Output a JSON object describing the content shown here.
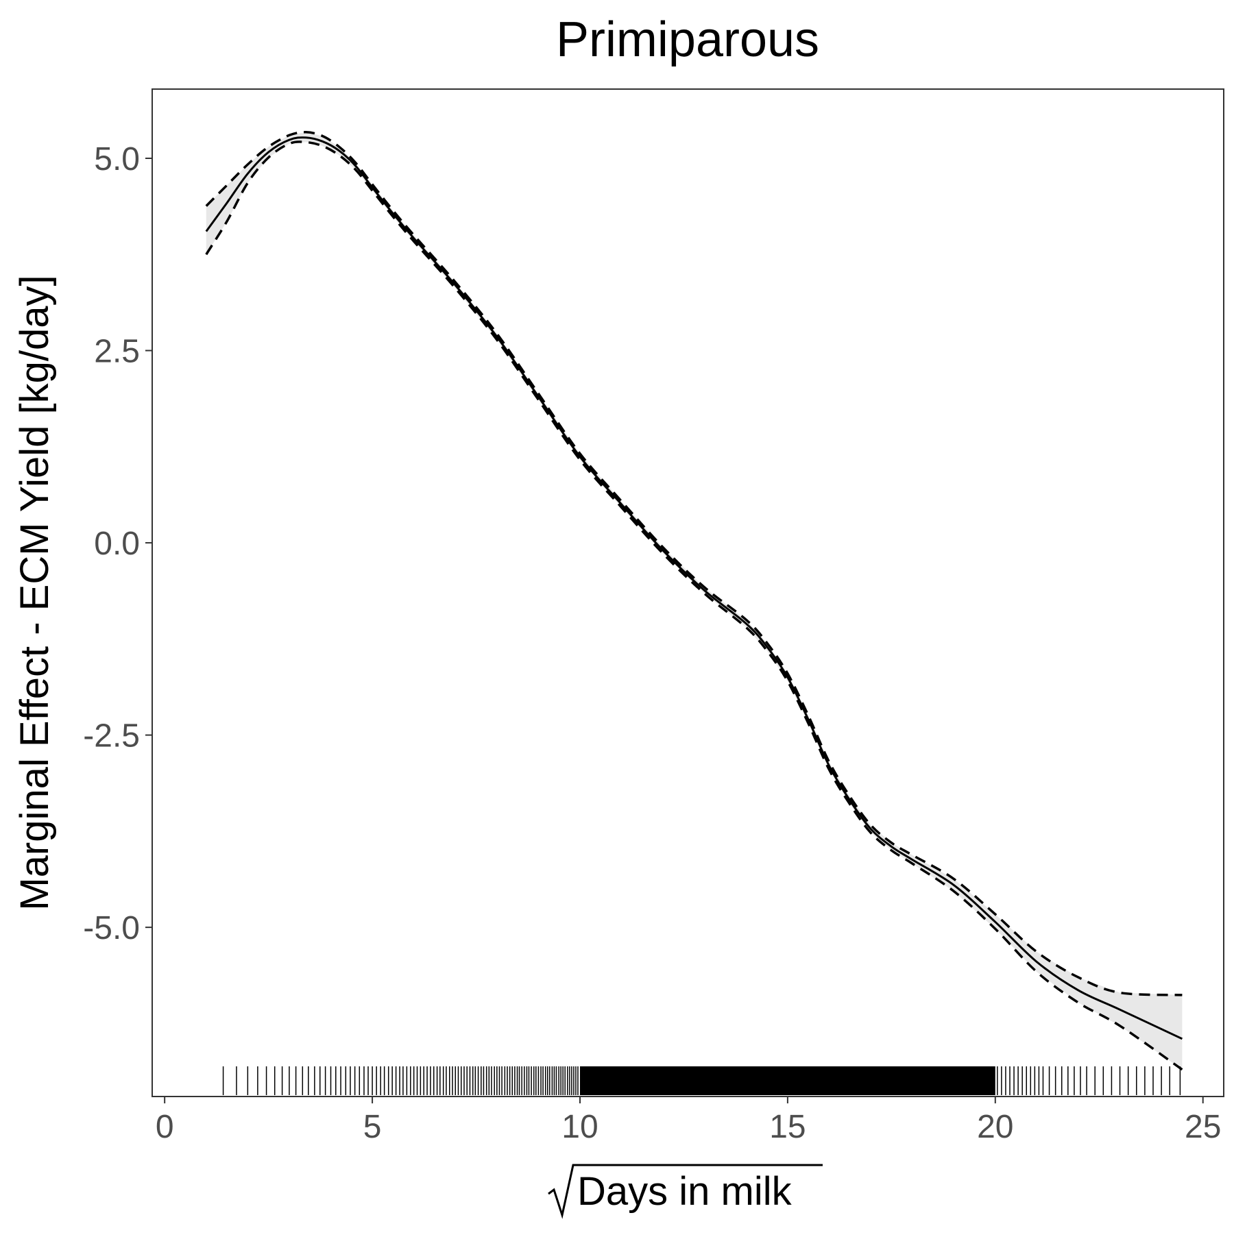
{
  "chart_data": {
    "type": "line",
    "title": "Primiparous",
    "xlabel": "Days in milk",
    "xlabel_transform": "sqrt",
    "ylabel": "Marginal Effect - ECM Yield [kg/day]",
    "xlim": [
      -0.3,
      25.5
    ],
    "ylim": [
      -7.2,
      5.9
    ],
    "x_ticks": [
      0,
      5,
      10,
      15,
      20,
      25
    ],
    "x_tick_labels": [
      "0",
      "5",
      "10",
      "15",
      "20",
      "25"
    ],
    "y_ticks": [
      5.0,
      2.5,
      0.0,
      -2.5,
      -5.0
    ],
    "y_tick_labels": [
      "5.0",
      "2.5",
      "0.0",
      "-2.5",
      "-5.0"
    ],
    "grid": false,
    "legend": "none",
    "series": [
      {
        "role": "estimate",
        "line_style": "solid",
        "x": [
          1.0,
          1.5,
          2.0,
          2.5,
          3.0,
          3.4,
          3.8,
          4.2,
          4.6,
          5.0,
          5.5,
          6.0,
          7.0,
          8.0,
          9.0,
          10.0,
          11.0,
          12.0,
          13.0,
          14.0,
          14.5,
          15.0,
          15.5,
          16.0,
          16.5,
          17.0,
          17.5,
          18.0,
          19.0,
          20.0,
          21.0,
          22.0,
          23.0,
          24.5
        ],
        "y": [
          4.05,
          4.42,
          4.8,
          5.08,
          5.24,
          5.27,
          5.22,
          5.1,
          4.9,
          4.62,
          4.28,
          3.96,
          3.35,
          2.68,
          1.9,
          1.12,
          0.5,
          -0.1,
          -0.62,
          -1.05,
          -1.35,
          -1.75,
          -2.3,
          -2.9,
          -3.35,
          -3.72,
          -3.95,
          -4.12,
          -4.45,
          -4.93,
          -5.45,
          -5.82,
          -6.07,
          -6.45
        ]
      },
      {
        "role": "upper-bound",
        "line_style": "dashed",
        "x": [
          1.0,
          1.5,
          2.0,
          2.5,
          3.0,
          3.4,
          3.8,
          4.2,
          4.6,
          5.0,
          5.5,
          6.0,
          7.0,
          8.0,
          9.0,
          10.0,
          11.0,
          12.0,
          13.0,
          14.0,
          14.5,
          15.0,
          15.5,
          16.0,
          16.5,
          17.0,
          17.5,
          18.0,
          19.0,
          20.0,
          21.0,
          22.0,
          23.0,
          24.5
        ],
        "y": [
          4.38,
          4.65,
          4.92,
          5.15,
          5.3,
          5.34,
          5.29,
          5.15,
          4.94,
          4.66,
          4.32,
          4.0,
          3.39,
          2.72,
          1.94,
          1.16,
          0.54,
          -0.06,
          -0.58,
          -1.0,
          -1.3,
          -1.7,
          -2.25,
          -2.85,
          -3.3,
          -3.67,
          -3.9,
          -4.06,
          -4.37,
          -4.83,
          -5.32,
          -5.65,
          -5.85,
          -5.88
        ]
      },
      {
        "role": "lower-bound",
        "line_style": "dashed",
        "x": [
          1.0,
          1.5,
          2.0,
          2.5,
          3.0,
          3.4,
          3.8,
          4.2,
          4.6,
          5.0,
          5.5,
          6.0,
          7.0,
          8.0,
          9.0,
          10.0,
          11.0,
          12.0,
          13.0,
          14.0,
          14.5,
          15.0,
          15.5,
          16.0,
          16.5,
          17.0,
          17.5,
          18.0,
          19.0,
          20.0,
          21.0,
          22.0,
          23.0,
          24.5
        ],
        "y": [
          3.75,
          4.18,
          4.68,
          5.01,
          5.19,
          5.21,
          5.16,
          5.04,
          4.85,
          4.58,
          4.24,
          3.92,
          3.31,
          2.64,
          1.86,
          1.08,
          0.46,
          -0.14,
          -0.66,
          -1.1,
          -1.4,
          -1.8,
          -2.35,
          -2.95,
          -3.4,
          -3.77,
          -4.0,
          -4.17,
          -4.53,
          -5.02,
          -5.58,
          -5.98,
          -6.28,
          -6.85
        ]
      }
    ],
    "band": {
      "fill": "#e8e8e8",
      "between": [
        "upper-bound",
        "lower-bound"
      ]
    },
    "rug": {
      "x": [
        1.41,
        1.73,
        2.0,
        2.24,
        2.45,
        2.65,
        2.83,
        3.0,
        3.16,
        3.32,
        3.46,
        3.61,
        3.74,
        3.87,
        4.0,
        4.12,
        4.24,
        4.36,
        4.47,
        4.58,
        4.69,
        4.8,
        4.9,
        5.0,
        5.1,
        5.2,
        5.29,
        5.39,
        5.48,
        5.57,
        5.66,
        5.74,
        5.83,
        5.92,
        6.0,
        6.08,
        6.16,
        6.24,
        6.32,
        6.4,
        6.48,
        6.56,
        6.63,
        6.71,
        6.78,
        6.86,
        6.93,
        7.0,
        7.07,
        7.14,
        7.21,
        7.28,
        7.35,
        7.42,
        7.48,
        7.55,
        7.62,
        7.68,
        7.75,
        7.81,
        7.87,
        7.94,
        8.0,
        8.06,
        8.12,
        8.19,
        8.25,
        8.31,
        8.37,
        8.43,
        8.49,
        8.54,
        8.6,
        8.66,
        8.72,
        8.77,
        8.83,
        8.89,
        8.94,
        9.0,
        9.06,
        9.11,
        9.17,
        9.22,
        9.27,
        9.33,
        9.38,
        9.43,
        9.49,
        9.54,
        9.59,
        9.64,
        9.7,
        9.75,
        9.8,
        9.85,
        9.9,
        9.95,
        20.05,
        20.15,
        20.25,
        20.35,
        20.45,
        20.55,
        20.65,
        20.75,
        20.85,
        20.95,
        21.05,
        21.15,
        21.3,
        21.45,
        21.6,
        21.75,
        21.9,
        22.05,
        22.2,
        22.4,
        22.6,
        22.8,
        23.0,
        23.2,
        23.4,
        23.6,
        23.8,
        24.0,
        24.2,
        24.45
      ],
      "dense_ranges": [
        [
          10.0,
          20.0
        ]
      ]
    }
  }
}
